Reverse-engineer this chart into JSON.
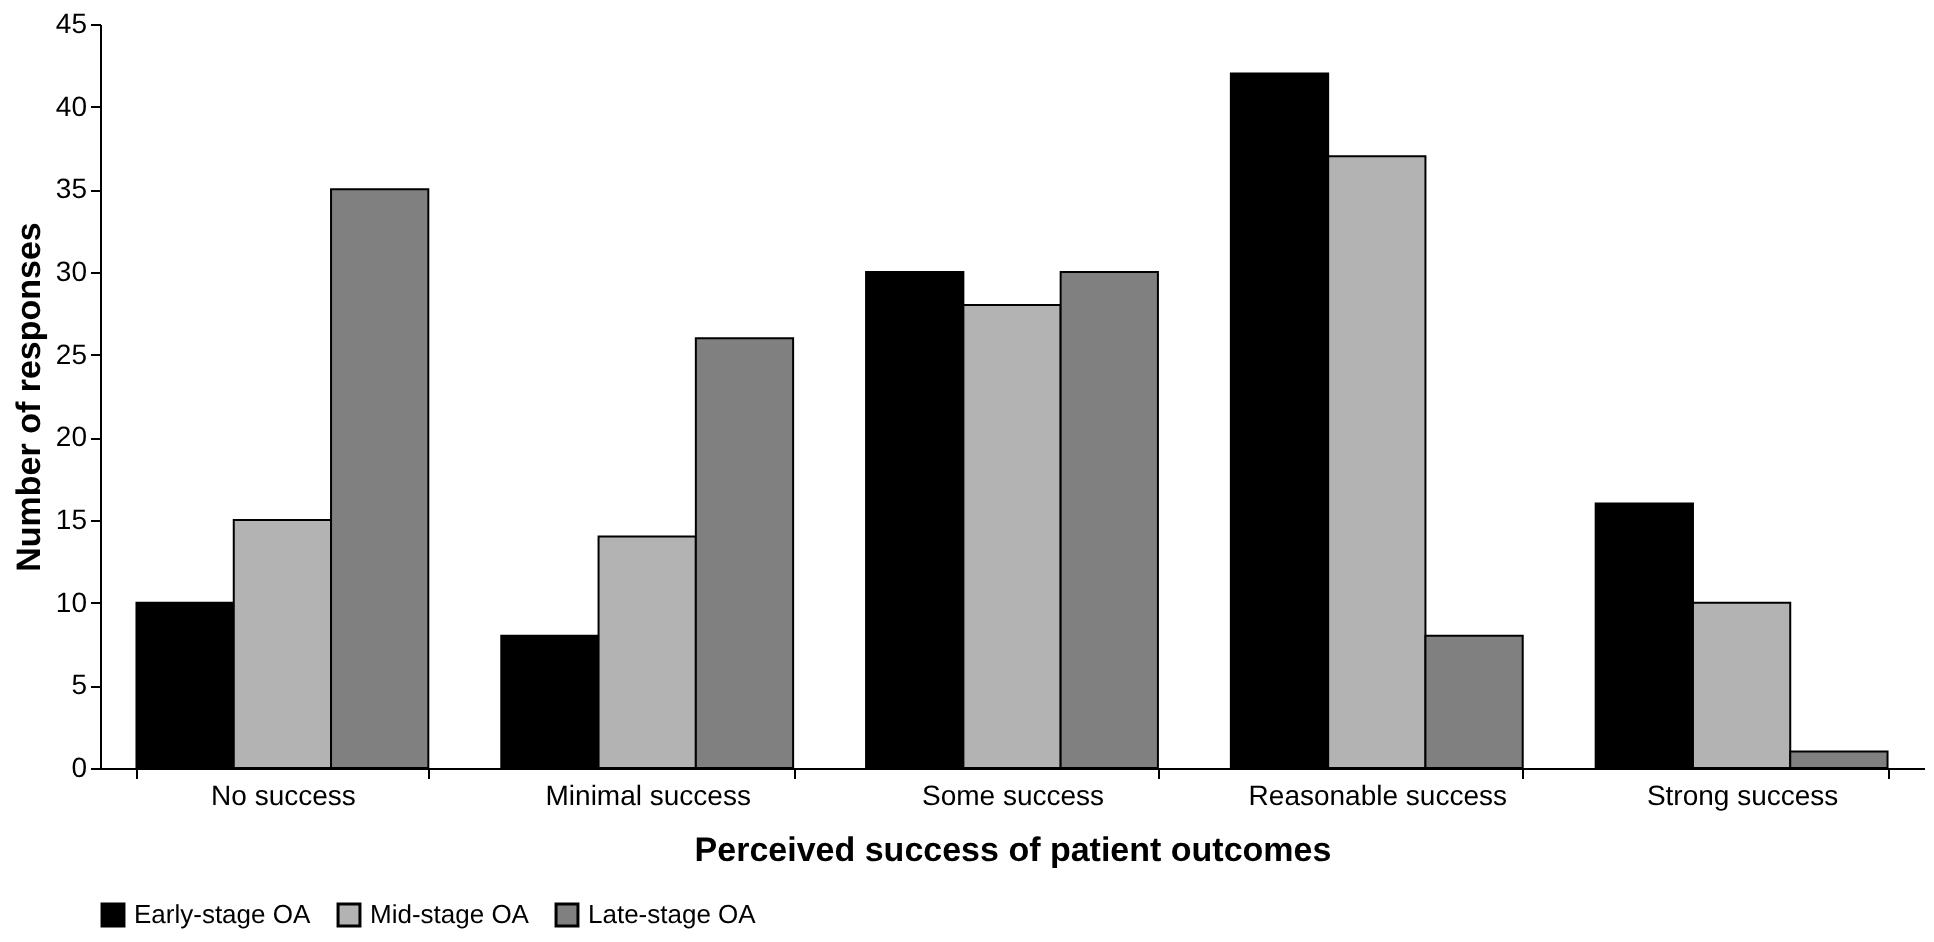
{
  "chart_data": {
    "type": "bar",
    "xlabel": "Perceived success of patient outcomes",
    "ylabel": "Number of responses",
    "categories": [
      "No success",
      "Minimal success",
      "Some success",
      "Reasonable success",
      "Strong success"
    ],
    "series": [
      {
        "name": "Early-stage OA",
        "color": "#000000",
        "values": [
          10,
          8,
          30,
          42,
          16
        ]
      },
      {
        "name": "Mid-stage OA",
        "color": "#b3b3b3",
        "values": [
          15,
          14,
          28,
          37,
          10
        ]
      },
      {
        "name": "Late-stage OA",
        "color": "#808080",
        "values": [
          35,
          26,
          30,
          8,
          1
        ]
      }
    ],
    "ylim": [
      0,
      45
    ],
    "yticks": [
      0,
      5,
      10,
      15,
      20,
      25,
      30,
      35,
      40,
      45
    ],
    "grid": false,
    "legend": "bottom"
  }
}
